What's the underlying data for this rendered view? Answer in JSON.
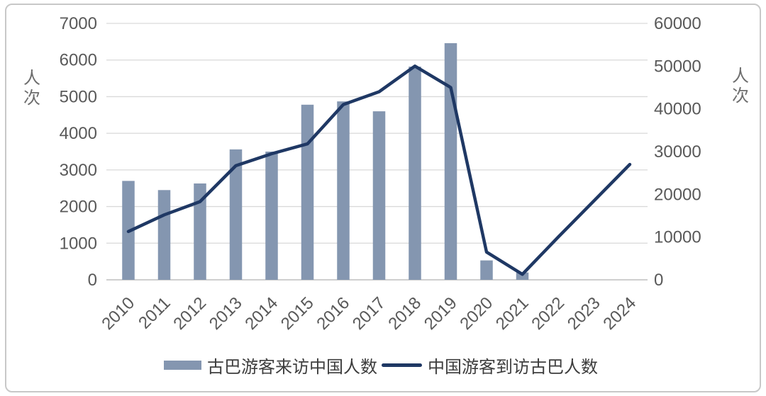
{
  "style": {
    "background": "#ffffff",
    "card_border": "#c8c8c8",
    "grid_color": "#d9d9d9",
    "axis_line_color": "#bfbfbf",
    "tick_text_color": "#595959",
    "axis_title_color": "#6e6e6e",
    "legend_text_color": "#3d3d3d"
  },
  "chart_data": {
    "type": "bar",
    "subtype": "combo-bar-line-dual-axis",
    "categories": [
      "2010",
      "2011",
      "2012",
      "2013",
      "2014",
      "2015",
      "2016",
      "2017",
      "2018",
      "2019",
      "2020",
      "2021",
      "2022",
      "2023",
      "2024"
    ],
    "series": [
      {
        "name": "古巴游客来访中国人数",
        "type": "bar",
        "axis": "left",
        "color": "#8496B0",
        "values": [
          2700,
          2450,
          2630,
          3560,
          3500,
          4780,
          4870,
          4600,
          5820,
          6460,
          530,
          200,
          null,
          null,
          null
        ]
      },
      {
        "name": "中国游客到访古巴人数",
        "type": "line",
        "axis": "right",
        "color": "#1F3864",
        "values": [
          11300,
          15200,
          18300,
          26700,
          29500,
          31800,
          41000,
          44000,
          50000,
          45000,
          6500,
          1300,
          10000,
          18500,
          27000
        ]
      }
    ],
    "left_axis": {
      "label": "人次",
      "min": 0,
      "max": 7000,
      "step": 1000,
      "ticks": [
        "0",
        "1000",
        "2000",
        "3000",
        "4000",
        "5000",
        "6000",
        "7000"
      ]
    },
    "right_axis": {
      "label": "人次",
      "min": 0,
      "max": 60000,
      "step": 10000,
      "ticks": [
        "0",
        "10000",
        "20000",
        "30000",
        "40000",
        "50000",
        "60000"
      ]
    },
    "grid": true,
    "legend_position": "bottom",
    "title": "",
    "xlabel": ""
  }
}
